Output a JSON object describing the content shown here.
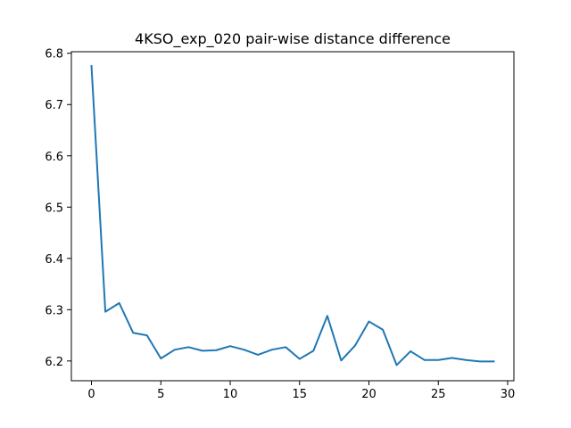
{
  "chart_data": {
    "type": "line",
    "title": "4KSO_exp_020 pair-wise distance difference",
    "xlabel": "",
    "ylabel": "",
    "xlim": [
      -1.45,
      30.45
    ],
    "ylim": [
      6.1615,
      6.803
    ],
    "xticks": [
      0,
      5,
      10,
      15,
      20,
      25,
      30
    ],
    "yticks": [
      6.2,
      6.3,
      6.4,
      6.5,
      6.6,
      6.7,
      6.8
    ],
    "grid": false,
    "colors": {
      "line": "#1f77b4",
      "axes": "#000000",
      "background": "#ffffff"
    },
    "series": [
      {
        "x": [
          0,
          1,
          2,
          3,
          4,
          5,
          6,
          7,
          8,
          9,
          10,
          11,
          12,
          13,
          14,
          15,
          16,
          17,
          18,
          19,
          20,
          21,
          22,
          23,
          24,
          25,
          26,
          27,
          28,
          29
        ],
        "y": [
          6.775,
          6.296,
          6.313,
          6.255,
          6.25,
          6.205,
          6.222,
          6.227,
          6.22,
          6.221,
          6.229,
          6.222,
          6.212,
          6.222,
          6.227,
          6.204,
          6.22,
          6.288,
          6.201,
          6.23,
          6.277,
          6.261,
          6.192,
          6.219,
          6.202,
          6.202,
          6.206,
          6.202,
          6.199,
          6.199
        ]
      }
    ]
  }
}
